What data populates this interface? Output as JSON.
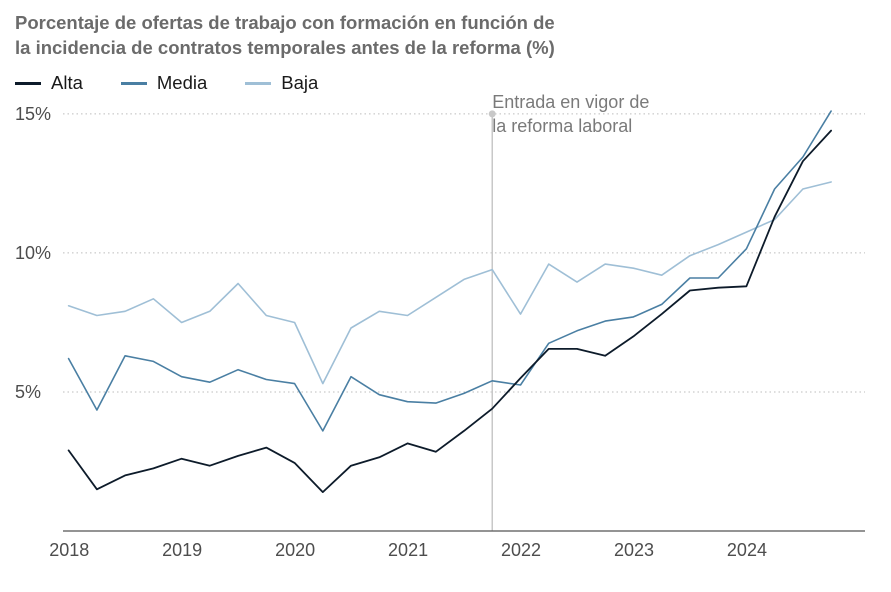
{
  "chart_data": {
    "type": "line",
    "title": "Porcentaje de ofertas de trabajo con formación en función de la incidencia de contratos temporales antes de la reforma (%)",
    "title_lines": [
      "Porcentaje de ofertas de trabajo con formación en función de",
      "la incidencia de contratos temporales antes de la reforma (%)"
    ],
    "xlabel": "",
    "ylabel": "",
    "x_ticks": [
      "2018",
      "2019",
      "2020",
      "2021",
      "2022",
      "2023",
      "2024"
    ],
    "y_ticks": [
      {
        "value": 5,
        "label": "5%"
      },
      {
        "value": 10,
        "label": "10%"
      },
      {
        "value": 15,
        "label": "15%"
      }
    ],
    "ylim": [
      0,
      15.5
    ],
    "xlim": [
      2017.95,
      2025.05
    ],
    "grid": "horizontal-dotted",
    "legend_position": "top-left",
    "x": [
      2018.0,
      2018.25,
      2018.5,
      2018.75,
      2019.0,
      2019.25,
      2019.5,
      2019.75,
      2020.0,
      2020.25,
      2020.5,
      2020.75,
      2021.0,
      2021.25,
      2021.5,
      2021.75,
      2022.0,
      2022.25,
      2022.5,
      2022.75,
      2023.0,
      2023.25,
      2023.5,
      2023.75,
      2024.0,
      2024.25,
      2024.5,
      2024.75,
      2025.0
    ],
    "series": [
      {
        "name": "Alta",
        "color": "#0d1b2a",
        "width": 1.8,
        "values": [
          2.9,
          1.5,
          2.0,
          2.25,
          2.6,
          2.35,
          2.7,
          3.0,
          2.45,
          1.4,
          2.35,
          2.65,
          3.15,
          2.85,
          3.6,
          4.4,
          5.5,
          6.55,
          6.55,
          6.3,
          7.0,
          7.8,
          8.65,
          8.75,
          8.8,
          11.3,
          13.3,
          14.4,
          null
        ]
      },
      {
        "name": "Media",
        "color": "#4a7fa3",
        "width": 1.6,
        "values": [
          6.2,
          4.35,
          6.3,
          6.1,
          5.55,
          5.35,
          5.8,
          5.45,
          5.3,
          3.6,
          5.55,
          4.9,
          4.65,
          4.6,
          4.95,
          5.4,
          5.25,
          6.75,
          7.2,
          7.55,
          7.7,
          8.15,
          9.1,
          9.1,
          10.15,
          12.3,
          13.45,
          15.1,
          null
        ]
      },
      {
        "name": "Baja",
        "color": "#9fbfd6",
        "width": 1.6,
        "values": [
          8.1,
          7.75,
          7.9,
          8.35,
          7.5,
          7.9,
          8.9,
          7.75,
          7.5,
          5.3,
          7.3,
          7.9,
          7.75,
          8.4,
          9.05,
          9.4,
          7.8,
          9.6,
          8.95,
          9.6,
          9.45,
          9.2,
          9.9,
          10.3,
          10.75,
          11.2,
          12.3,
          12.55,
          null
        ]
      }
    ],
    "annotation": {
      "x": 2021.75,
      "lines": [
        "Entrada en vigor de",
        "la reforma laboral"
      ]
    }
  }
}
